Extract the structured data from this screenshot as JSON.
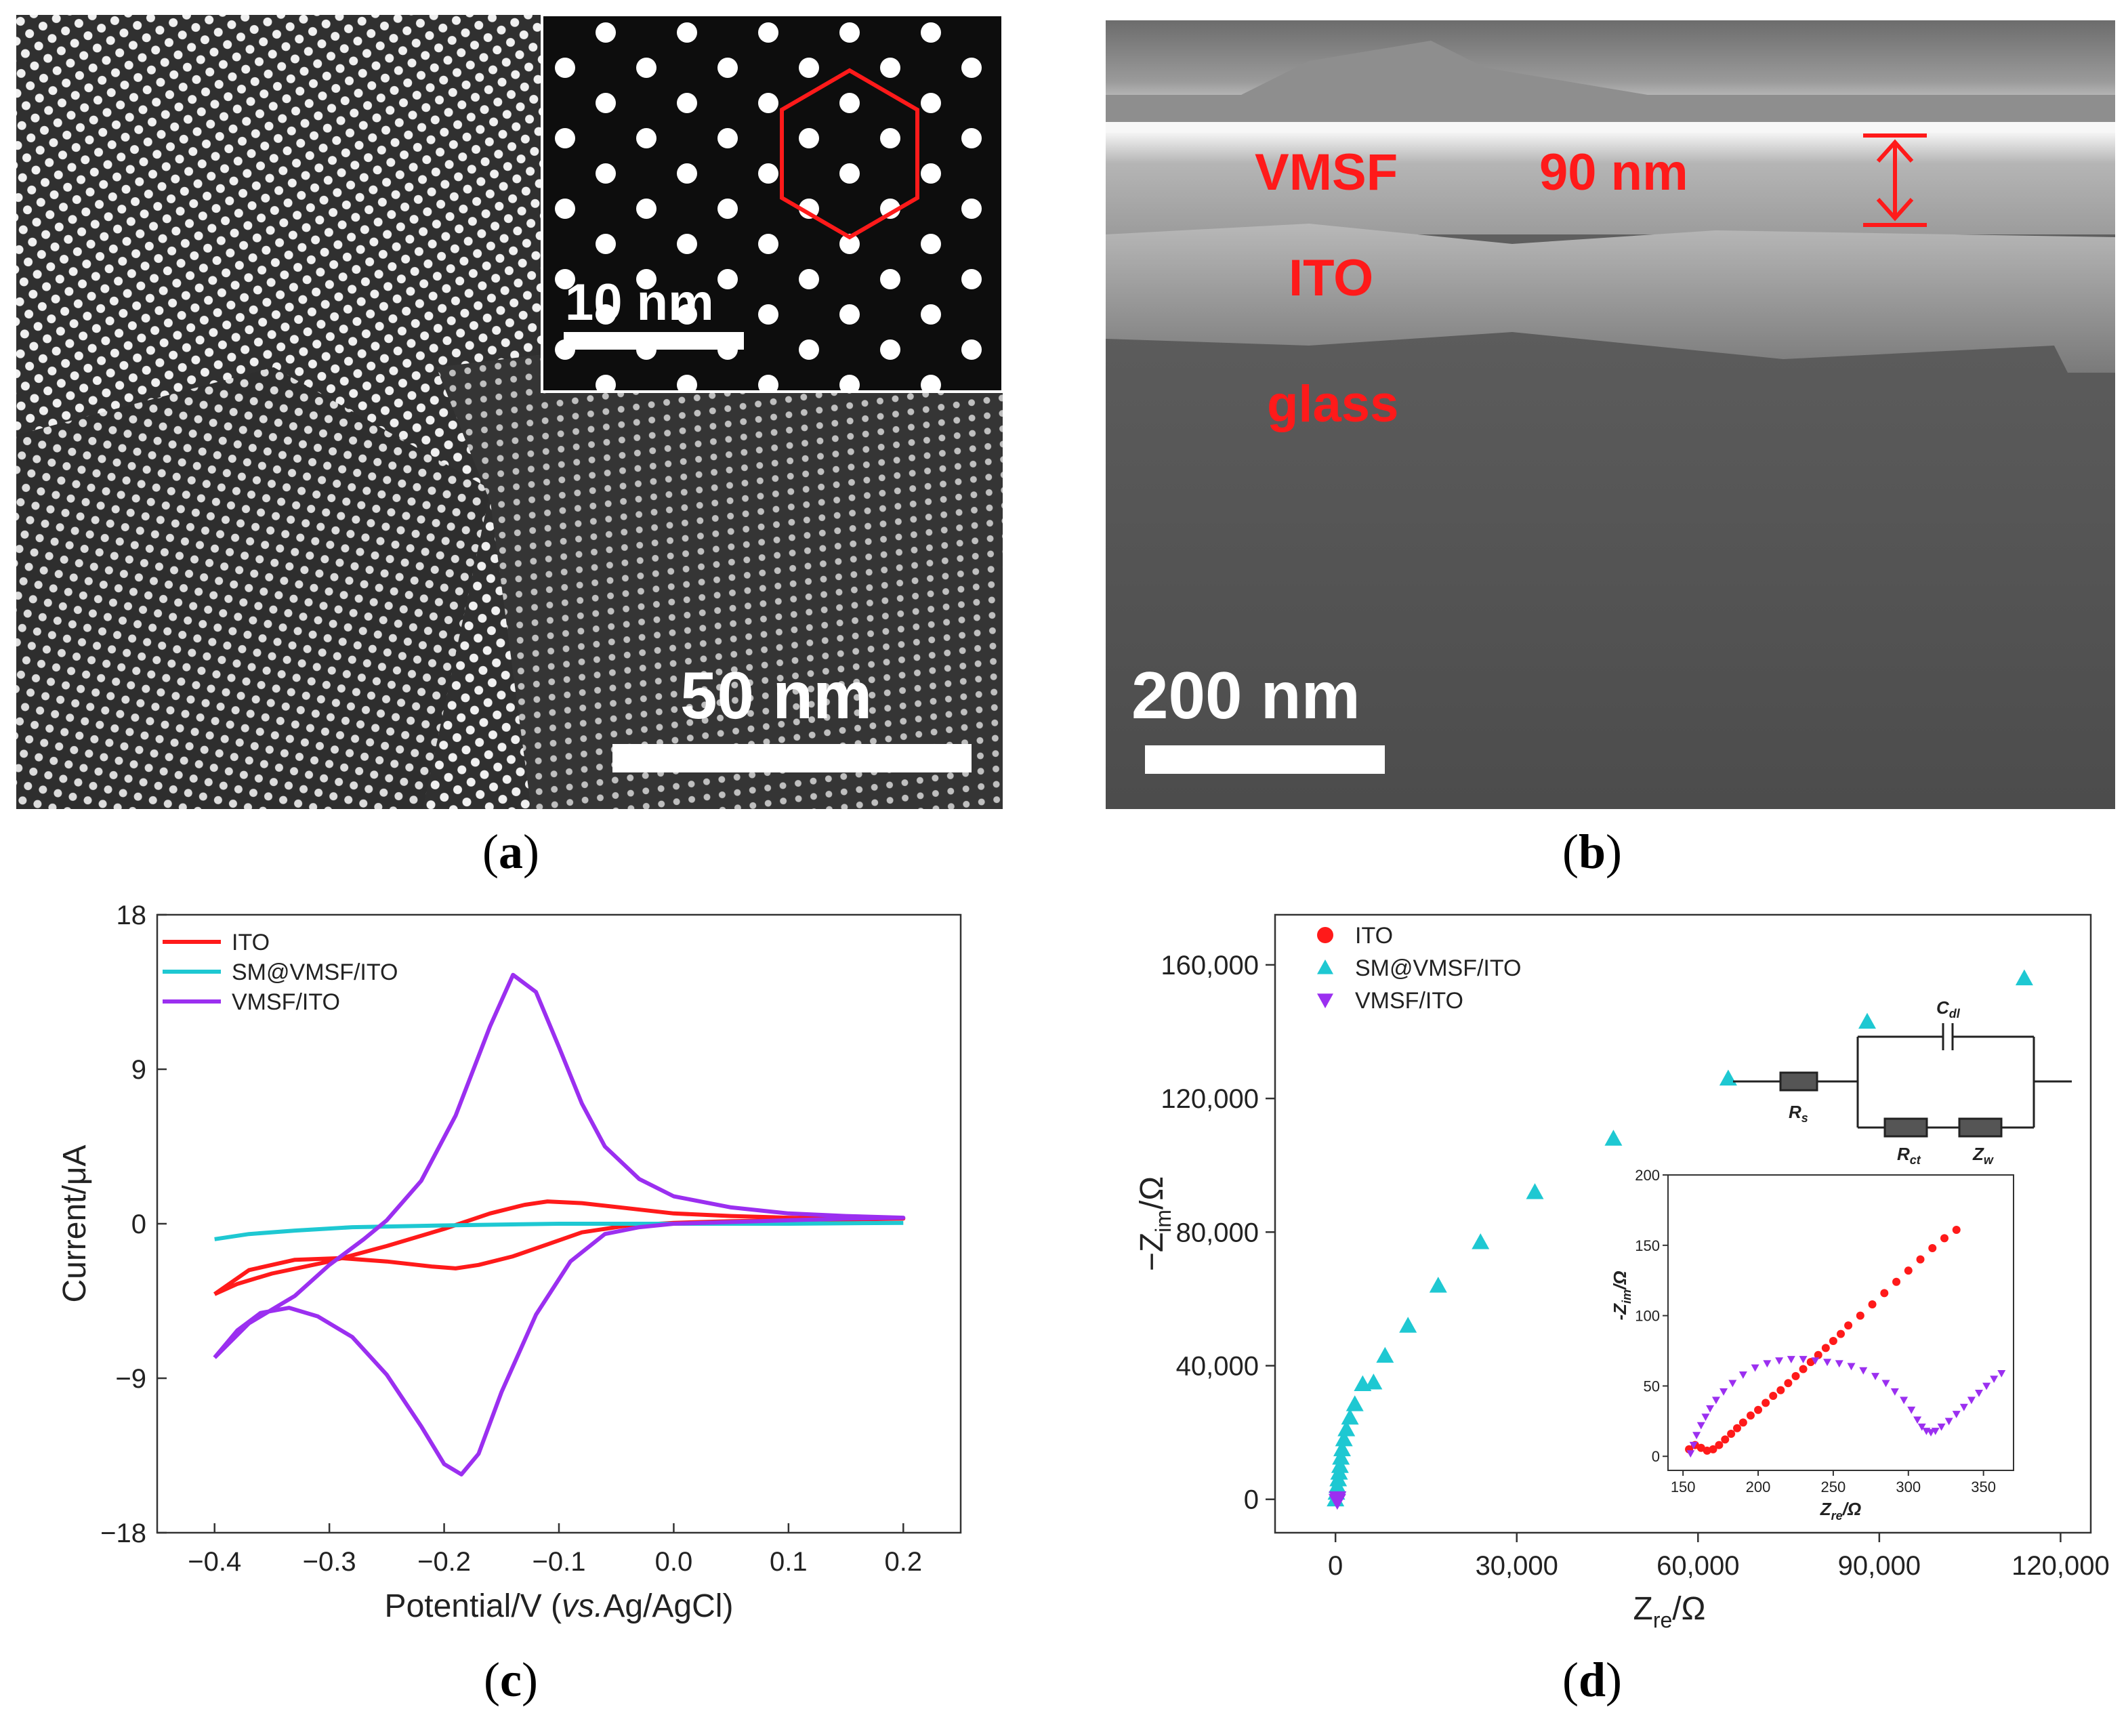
{
  "colors": {
    "ito": "#ff1a1a",
    "sm": "#1ec8d2",
    "vmsf": "#9b2ff0",
    "annot_red": "#ff1a1a"
  },
  "panel_a": {
    "caption": "a",
    "scale_bar": "50 nm",
    "inset_scale_bar": "10 nm"
  },
  "panel_b": {
    "caption": "b",
    "scale_bar": "200 nm",
    "layer_vmsf": "VMSF",
    "thickness": "90 nm",
    "layer_ito": "ITO",
    "layer_glass": "glass"
  },
  "panel_c": {
    "caption": "c"
  },
  "panel_d": {
    "caption": "d",
    "circuit": {
      "cdl": "C",
      "cdl_sub": "dl",
      "rs": "R",
      "rs_sub": "s",
      "rct": "R",
      "rct_sub": "ct",
      "zw": "Z",
      "zw_sub": "w"
    }
  },
  "chart_data": [
    {
      "type": "line",
      "panel": "c",
      "xlabel_prefix": "Potential/V (",
      "xlabel_italic": "vs.",
      "xlabel_suffix": "Ag/AgCl)",
      "ylabel": "Current/μA",
      "xlim": [
        -0.45,
        0.25
      ],
      "ylim": [
        -18,
        18
      ],
      "xticks": [
        "-0.4",
        "-0.3",
        "-0.2",
        "-0.1",
        "0.0",
        "0.1",
        "0.2"
      ],
      "xtick_values": [
        -0.4,
        -0.3,
        -0.2,
        -0.1,
        0.0,
        0.1,
        0.2
      ],
      "yticks": [
        "18",
        "9",
        "0",
        "-9",
        "-18"
      ],
      "ytick_values": [
        18,
        9,
        0,
        -9,
        -18
      ],
      "legend_location": "top-left",
      "series": [
        {
          "name": "ITO",
          "color_key": "ito",
          "points": [
            [
              -0.4,
              -4.1
            ],
            [
              -0.38,
              -3.5
            ],
            [
              -0.35,
              -2.9
            ],
            [
              -0.3,
              -2.2
            ],
            [
              -0.25,
              -1.3
            ],
            [
              -0.2,
              -0.3
            ],
            [
              -0.16,
              0.6
            ],
            [
              -0.13,
              1.1
            ],
            [
              -0.11,
              1.3
            ],
            [
              -0.08,
              1.2
            ],
            [
              -0.04,
              0.9
            ],
            [
              0.0,
              0.6
            ],
            [
              0.05,
              0.45
            ],
            [
              0.1,
              0.35
            ],
            [
              0.15,
              0.3
            ],
            [
              0.2,
              0.3
            ],
            [
              0.15,
              0.25
            ],
            [
              0.1,
              0.2
            ],
            [
              0.05,
              0.15
            ],
            [
              0.0,
              0.05
            ],
            [
              -0.04,
              -0.1
            ],
            [
              -0.08,
              -0.5
            ],
            [
              -0.11,
              -1.2
            ],
            [
              -0.14,
              -1.9
            ],
            [
              -0.17,
              -2.4
            ],
            [
              -0.19,
              -2.6
            ],
            [
              -0.21,
              -2.5
            ],
            [
              -0.25,
              -2.2
            ],
            [
              -0.29,
              -2.0
            ],
            [
              -0.33,
              -2.1
            ],
            [
              -0.37,
              -2.7
            ],
            [
              -0.4,
              -4.1
            ]
          ]
        },
        {
          "name": "SM@VMSF/ITO",
          "color_key": "sm",
          "points": [
            [
              -0.4,
              -0.9
            ],
            [
              -0.37,
              -0.6
            ],
            [
              -0.33,
              -0.4
            ],
            [
              -0.28,
              -0.2
            ],
            [
              -0.2,
              -0.1
            ],
            [
              -0.1,
              0.0
            ],
            [
              0.0,
              0.0
            ],
            [
              0.1,
              0.0
            ],
            [
              0.2,
              0.05
            ]
          ]
        },
        {
          "name": "VMSF/ITO",
          "color_key": "vmsf",
          "points": [
            [
              -0.4,
              -7.8
            ],
            [
              -0.37,
              -5.8
            ],
            [
              -0.33,
              -4.2
            ],
            [
              -0.3,
              -2.4
            ],
            [
              -0.27,
              -0.9
            ],
            [
              -0.25,
              0.2
            ],
            [
              -0.22,
              2.5
            ],
            [
              -0.19,
              6.3
            ],
            [
              -0.16,
              11.5
            ],
            [
              -0.14,
              14.5
            ],
            [
              -0.12,
              13.5
            ],
            [
              -0.1,
              10.3
            ],
            [
              -0.08,
              7.0
            ],
            [
              -0.06,
              4.5
            ],
            [
              -0.03,
              2.6
            ],
            [
              0.0,
              1.6
            ],
            [
              0.05,
              0.95
            ],
            [
              0.1,
              0.6
            ],
            [
              0.15,
              0.45
            ],
            [
              0.2,
              0.35
            ],
            [
              0.15,
              0.3
            ],
            [
              0.1,
              0.2
            ],
            [
              0.05,
              0.1
            ],
            [
              0.0,
              0.0
            ],
            [
              -0.03,
              -0.2
            ],
            [
              -0.06,
              -0.6
            ],
            [
              -0.09,
              -2.2
            ],
            [
              -0.12,
              -5.3
            ],
            [
              -0.15,
              -9.8
            ],
            [
              -0.17,
              -13.4
            ],
            [
              -0.185,
              -14.6
            ],
            [
              -0.2,
              -14.0
            ],
            [
              -0.22,
              -11.8
            ],
            [
              -0.25,
              -8.8
            ],
            [
              -0.28,
              -6.6
            ],
            [
              -0.31,
              -5.4
            ],
            [
              -0.335,
              -4.9
            ],
            [
              -0.36,
              -5.2
            ],
            [
              -0.38,
              -6.2
            ],
            [
              -0.4,
              -7.8
            ]
          ]
        }
      ]
    },
    {
      "type": "scatter",
      "panel": "d",
      "xlabel": "Z",
      "xlabel_sub": "re",
      "xlabel_unit": "/Ω",
      "ylabel_prefix": "−Z",
      "ylabel_sub": "im",
      "ylabel_unit": "/Ω",
      "xlim": [
        -10000,
        125000
      ],
      "ylim": [
        -10000,
        175000
      ],
      "xticks": [
        "0",
        "30,000",
        "60,000",
        "90,000",
        "120,000"
      ],
      "xtick_values": [
        0,
        30000,
        60000,
        90000,
        120000
      ],
      "yticks": [
        "0",
        "40,000",
        "80,000",
        "120,000",
        "160,000"
      ],
      "ytick_values": [
        0,
        40000,
        80000,
        120000,
        160000
      ],
      "legend_location": "top-left",
      "series": [
        {
          "name": "ITO",
          "marker": "circle",
          "color_key": "ito",
          "points": [
            [
              150,
              5
            ],
            [
              200,
              30
            ],
            [
              250,
              70
            ],
            [
              300,
              120
            ],
            [
              330,
              160
            ]
          ]
        },
        {
          "name": "SM@VMSF/ITO",
          "marker": "triangle-up",
          "color_key": "sm",
          "points": [
            [
              0,
              0
            ],
            [
              150,
              2000
            ],
            [
              300,
              4000
            ],
            [
              450,
              6000
            ],
            [
              600,
              8000
            ],
            [
              750,
              10000
            ],
            [
              900,
              12500
            ],
            [
              1100,
              15000
            ],
            [
              1400,
              18000
            ],
            [
              1800,
              21000
            ],
            [
              2400,
              24500
            ],
            [
              3200,
              28500
            ],
            [
              4500,
              34500
            ],
            [
              6300,
              35000
            ],
            [
              8200,
              43000
            ],
            [
              12000,
              52000
            ],
            [
              17000,
              64000
            ],
            [
              24000,
              77000
            ],
            [
              33000,
              92000
            ],
            [
              46000,
              108000
            ],
            [
              65000,
              126000
            ],
            [
              88000,
              143000
            ],
            [
              114000,
              156000
            ]
          ]
        },
        {
          "name": "VMSF/ITO",
          "marker": "triangle-down",
          "color_key": "vmsf",
          "points": [
            [
              300,
              -500
            ],
            [
              350,
              300
            ]
          ]
        }
      ],
      "inset": {
        "xlabel": "Z",
        "xlabel_sub": "re",
        "xlabel_unit": "/Ω",
        "ylabel": "-Z",
        "ylabel_sub": "im",
        "ylabel_unit": "/Ω",
        "xlim": [
          140,
          370
        ],
        "ylim": [
          -10,
          200
        ],
        "xticks": [
          "150",
          "200",
          "250",
          "300",
          "350"
        ],
        "xtick_values": [
          150,
          200,
          250,
          300,
          350
        ],
        "yticks": [
          "0",
          "50",
          "100",
          "150",
          "200"
        ],
        "ytick_values": [
          0,
          50,
          100,
          150,
          200
        ],
        "series": [
          {
            "name": "ITO",
            "marker": "circle",
            "color_key": "ito",
            "points": [
              [
                154,
                5
              ],
              [
                158,
                8
              ],
              [
                162,
                6
              ],
              [
                166,
                4
              ],
              [
                170,
                5
              ],
              [
                174,
                8
              ],
              [
                178,
                12
              ],
              [
                182,
                16
              ],
              [
                186,
                20
              ],
              [
                190,
                24
              ],
              [
                195,
                29
              ],
              [
                200,
                33
              ],
              [
                205,
                38
              ],
              [
                210,
                43
              ],
              [
                215,
                47
              ],
              [
                220,
                52
              ],
              [
                225,
                57
              ],
              [
                230,
                62
              ],
              [
                235,
                67
              ],
              [
                240,
                72
              ],
              [
                245,
                77
              ],
              [
                250,
                82
              ],
              [
                255,
                87
              ],
              [
                260,
                93
              ],
              [
                268,
                100
              ],
              [
                276,
                108
              ],
              [
                284,
                116
              ],
              [
                292,
                124
              ],
              [
                300,
                132
              ],
              [
                308,
                140
              ],
              [
                316,
                148
              ],
              [
                324,
                155
              ],
              [
                332,
                161
              ]
            ]
          },
          {
            "name": "VMSF/ITO",
            "marker": "triangle-down",
            "color_key": "vmsf",
            "points": [
              [
                155,
                2
              ],
              [
                157,
                8
              ],
              [
                159,
                15
              ],
              [
                162,
                22
              ],
              [
                165,
                28
              ],
              [
                168,
                34
              ],
              [
                172,
                40
              ],
              [
                177,
                46
              ],
              [
                183,
                52
              ],
              [
                190,
                58
              ],
              [
                198,
                63
              ],
              [
                206,
                66
              ],
              [
                214,
                68
              ],
              [
                222,
                69
              ],
              [
                230,
                69
              ],
              [
                238,
                68
              ],
              [
                246,
                67
              ],
              [
                254,
                66
              ],
              [
                262,
                64
              ],
              [
                270,
                61
              ],
              [
                278,
                57
              ],
              [
                285,
                52
              ],
              [
                291,
                46
              ],
              [
                297,
                40
              ],
              [
                302,
                33
              ],
              [
                306,
                26
              ],
              [
                309,
                21
              ],
              [
                312,
                18
              ],
              [
                315,
                17
              ],
              [
                318,
                18
              ],
              [
                322,
                21
              ],
              [
                327,
                25
              ],
              [
                332,
                30
              ],
              [
                337,
                35
              ],
              [
                342,
                40
              ],
              [
                347,
                45
              ],
              [
                352,
                50
              ],
              [
                357,
                55
              ],
              [
                362,
                59
              ]
            ]
          }
        ]
      }
    }
  ]
}
